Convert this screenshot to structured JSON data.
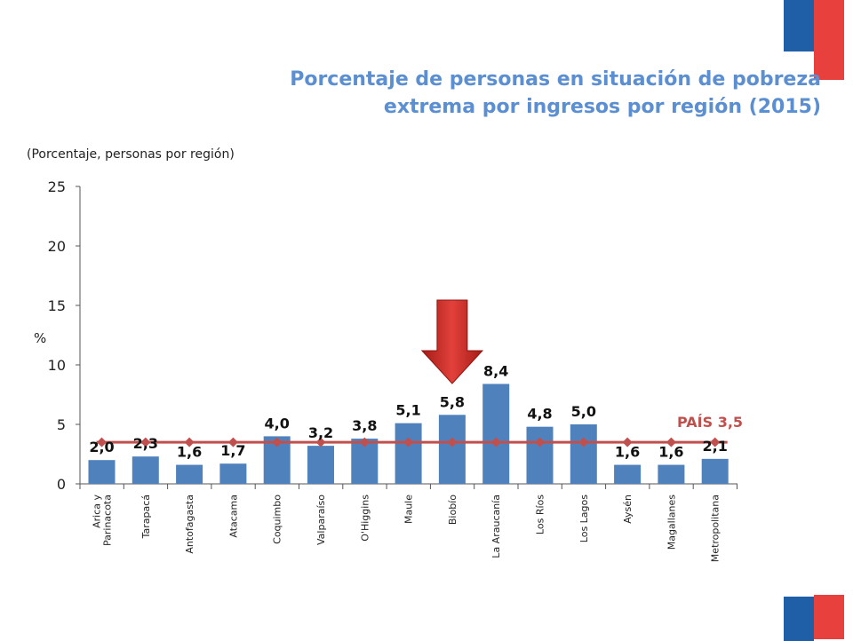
{
  "branding": {
    "colors": [
      "#1f5fa8",
      "#e8403d"
    ]
  },
  "title_lines": [
    "Porcentaje de personas en situación de pobreza",
    "extrema por ingresos por región (2015)"
  ],
  "subtitle": "(Porcentaje, personas por región)",
  "chart_data": {
    "type": "bar",
    "ylabel": "%",
    "ylim": [
      0,
      25
    ],
    "yticks": [
      "0",
      "5",
      "10",
      "15",
      "20",
      "25"
    ],
    "categories": [
      [
        "Arica y",
        "Parinacota"
      ],
      [
        "Tarapacá"
      ],
      [
        "Antofagasta"
      ],
      [
        "Atacama"
      ],
      [
        "Coquimbo"
      ],
      [
        "Valparaíso"
      ],
      [
        "O'Higgins"
      ],
      [
        "Maule"
      ],
      [
        "Biobío"
      ],
      [
        "La Araucanía"
      ],
      [
        "Los Ríos"
      ],
      [
        "Los Lagos"
      ],
      [
        "Aysén"
      ],
      [
        "Magallanes"
      ],
      [
        "Metropolitana"
      ]
    ],
    "values": [
      2.0,
      2.3,
      1.6,
      1.7,
      4.0,
      3.2,
      3.8,
      5.1,
      5.8,
      8.4,
      4.8,
      5.0,
      1.6,
      1.6,
      2.1
    ],
    "value_labels": [
      "2,0",
      "2,3",
      "1,6",
      "1,7",
      "4,0",
      "3,2",
      "3,8",
      "5,1",
      "5,8",
      "8,4",
      "4,8",
      "5,0",
      "1,6",
      "1,6",
      "2,1"
    ],
    "bar_color": "#4f81bd",
    "reference_line": {
      "label": "PAÍS 3,5",
      "value": 3.5,
      "color": "#c0504d"
    },
    "highlight_index": 8,
    "highlight_arrow_color": "#d9322b",
    "grid": false,
    "legend": "none"
  }
}
